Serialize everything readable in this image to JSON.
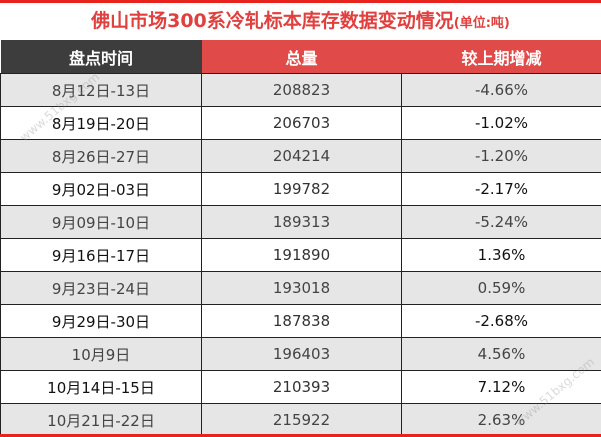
{
  "title": "佛山市场300系冷轧标本库存数据变动情况",
  "unit": "(单位:吨)",
  "columns": [
    "盘点时间",
    "总量",
    "较上期增减"
  ],
  "rows": [
    [
      "8月12日-13日",
      "208823",
      "-4.66%"
    ],
    [
      "8月19日-20日",
      "206703",
      "-1.02%"
    ],
    [
      "8月26日-27日",
      "204214",
      "-1.20%"
    ],
    [
      "9月02日-03日",
      "199782",
      "-2.17%"
    ],
    [
      "9月09日-10日",
      "189313",
      "-5.24%"
    ],
    [
      "9月16日-17日",
      "191890",
      "1.36%"
    ],
    [
      "9月23日-24日",
      "193018",
      "0.59%"
    ],
    [
      "9月29日-30日",
      "187838",
      "-2.68%"
    ],
    [
      "10月9日",
      "196403",
      "4.56%"
    ],
    [
      "10月14日-15日",
      "210393",
      "7.12%"
    ],
    [
      "10月21日-22日",
      "215922",
      "2.63%"
    ]
  ],
  "watermark": "www.51bxg.com",
  "colors": {
    "accent": "#e04b4a",
    "header_dark": "#3d3d3d",
    "row_alt": "#e6e6e6"
  }
}
